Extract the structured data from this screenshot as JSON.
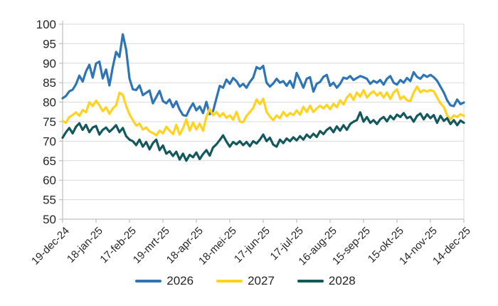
{
  "colors": {
    "background": "#FFFFFF",
    "gridline": "#D9D9D9",
    "axis_line": "#BFBFBF",
    "label_text": "#262626",
    "series_2026": "#2E75B6",
    "series_2027": "#FFD320",
    "series_2028": "#12585C"
  },
  "chart_data": {
    "type": "line",
    "title": "",
    "xlabel": "",
    "ylabel": "",
    "ylim": [
      50,
      100
    ],
    "y_step": 5,
    "y_tick_labels": [
      "50",
      "55",
      "60",
      "65",
      "70",
      "75",
      "80",
      "85",
      "90",
      "95",
      "100"
    ],
    "x_domain": [
      0,
      360
    ],
    "grid": "horizontal",
    "legend_position": "bottom-center",
    "sample_interval_days": 3,
    "x_ticks": [
      {
        "day": 0,
        "label": "19-dec-24"
      },
      {
        "day": 30,
        "label": "18-jan-25"
      },
      {
        "day": 60,
        "label": "17-feb-25"
      },
      {
        "day": 90,
        "label": "19-mrt-25"
      },
      {
        "day": 120,
        "label": "18-apr-25"
      },
      {
        "day": 150,
        "label": "18-mei-25"
      },
      {
        "day": 180,
        "label": "17-jun-25"
      },
      {
        "day": 210,
        "label": "17-jul-25"
      },
      {
        "day": 240,
        "label": "16-aug-25"
      },
      {
        "day": 270,
        "label": "15-sep-25"
      },
      {
        "day": 300,
        "label": "15-okt-25"
      },
      {
        "day": 330,
        "label": "14-nov-25"
      },
      {
        "day": 360,
        "label": "14-dec-25"
      }
    ],
    "series": [
      {
        "name": "2026",
        "color": "#2E75B6",
        "values": [
          81.0,
          81.6,
          82.8,
          83.2,
          84.6,
          86.8,
          85.3,
          87.9,
          89.6,
          86.3,
          89.9,
          90.4,
          86.1,
          88.4,
          84.3,
          89.0,
          92.9,
          91.6,
          97.4,
          93.5,
          86.1,
          83.3,
          83.1,
          84.3,
          81.8,
          82.4,
          83.0,
          79.7,
          81.3,
          82.9,
          80.3,
          79.7,
          80.7,
          78.7,
          80.2,
          78.1,
          76.7,
          76.5,
          78.3,
          79.7,
          77.9,
          78.9,
          77.2,
          80.1,
          76.9,
          77.7,
          81.0,
          84.2,
          83.7,
          85.8,
          84.7,
          86.2,
          85.4,
          84.0,
          84.7,
          83.7,
          85.2,
          86.3,
          89.0,
          88.5,
          89.3,
          85.0,
          84.0,
          84.8,
          86.0,
          85.0,
          85.4,
          84.2,
          85.5,
          83.7,
          87.5,
          85.7,
          83.7,
          86.0,
          86.4,
          82.7,
          84.7,
          85.2,
          86.5,
          87.0,
          84.2,
          85.0,
          83.7,
          84.7,
          86.3,
          86.0,
          86.7,
          85.7,
          86.2,
          86.7,
          86.4,
          86.0,
          84.7,
          85.5,
          85.0,
          85.7,
          84.5,
          86.0,
          86.7,
          85.0,
          84.5,
          85.7,
          85.0,
          86.2,
          85.4,
          87.7,
          86.5,
          86.0,
          87.0,
          86.5,
          87.0,
          86.4,
          85.5,
          84.0,
          82.5,
          80.5,
          79.2,
          79.0,
          80.7,
          79.5,
          79.9
        ]
      },
      {
        "name": "2027",
        "color": "#FFD320",
        "values": [
          75.2,
          74.7,
          76.2,
          76.7,
          77.4,
          76.5,
          78.0,
          77.4,
          80.0,
          79.0,
          80.4,
          79.2,
          77.7,
          78.7,
          77.0,
          78.4,
          79.2,
          82.4,
          81.9,
          79.0,
          76.9,
          75.4,
          74.0,
          74.5,
          73.0,
          73.5,
          72.5,
          72.1,
          71.5,
          72.7,
          72.0,
          73.7,
          72.7,
          71.8,
          74.2,
          71.7,
          73.3,
          75.6,
          72.7,
          74.8,
          73.0,
          74.5,
          72.7,
          76.3,
          78.3,
          76.6,
          77.5,
          76.3,
          77.2,
          76.0,
          76.6,
          75.5,
          77.5,
          75.0,
          74.9,
          76.5,
          77.5,
          78.5,
          80.7,
          79.5,
          80.9,
          77.5,
          76.3,
          75.4,
          76.6,
          75.9,
          77.5,
          76.4,
          77.2,
          76.7,
          77.9,
          76.8,
          78.8,
          77.5,
          79.1,
          77.5,
          78.4,
          79.1,
          78.4,
          79.3,
          78.2,
          79.6,
          78.7,
          80.5,
          79.4,
          81.2,
          82.1,
          80.6,
          82.5,
          81.4,
          83.1,
          81.2,
          82.2,
          82.8,
          81.7,
          82.5,
          81.2,
          82.5,
          80.8,
          82.5,
          83.3,
          80.8,
          81.5,
          80.5,
          80.3,
          82.5,
          84.0,
          82.5,
          83.1,
          82.7,
          83.1,
          82.8,
          81.2,
          79.7,
          78.8,
          76.6,
          75.6,
          76.6,
          76.2,
          76.9,
          76.5
        ]
      },
      {
        "name": "2028",
        "color": "#12585C",
        "values": [
          70.9,
          72.3,
          73.4,
          72.0,
          73.7,
          74.6,
          72.9,
          74.2,
          72.3,
          73.5,
          73.9,
          71.7,
          72.9,
          73.5,
          72.4,
          73.2,
          74.1,
          72.3,
          73.4,
          71.3,
          70.4,
          70.0,
          69.0,
          70.4,
          68.6,
          69.8,
          67.9,
          69.5,
          70.4,
          67.7,
          68.9,
          66.8,
          67.4,
          66.2,
          67.3,
          65.3,
          66.8,
          65.0,
          66.5,
          65.9,
          67.1,
          65.4,
          66.7,
          67.7,
          66.3,
          68.4,
          69.2,
          70.3,
          71.5,
          69.9,
          68.6,
          69.8,
          69.2,
          70.0,
          69.0,
          69.8,
          68.7,
          70.0,
          69.4,
          70.4,
          71.7,
          70.0,
          70.9,
          69.1,
          68.6,
          70.4,
          69.5,
          70.7,
          70.0,
          71.0,
          70.2,
          71.3,
          70.4,
          71.7,
          70.9,
          71.9,
          71.1,
          72.6,
          71.8,
          72.9,
          73.5,
          72.3,
          73.8,
          72.7,
          74.1,
          72.9,
          74.4,
          75.0,
          75.4,
          77.4,
          75.0,
          76.2,
          74.7,
          75.4,
          74.4,
          75.6,
          76.2,
          75.1,
          76.5,
          75.6,
          76.8,
          76.2,
          77.2,
          75.9,
          76.3,
          75.0,
          76.5,
          77.1,
          75.6,
          76.9,
          75.9,
          76.7,
          74.7,
          76.5,
          75.2,
          75.9,
          74.4,
          75.4,
          74.1,
          75.3,
          74.7
        ]
      }
    ]
  }
}
